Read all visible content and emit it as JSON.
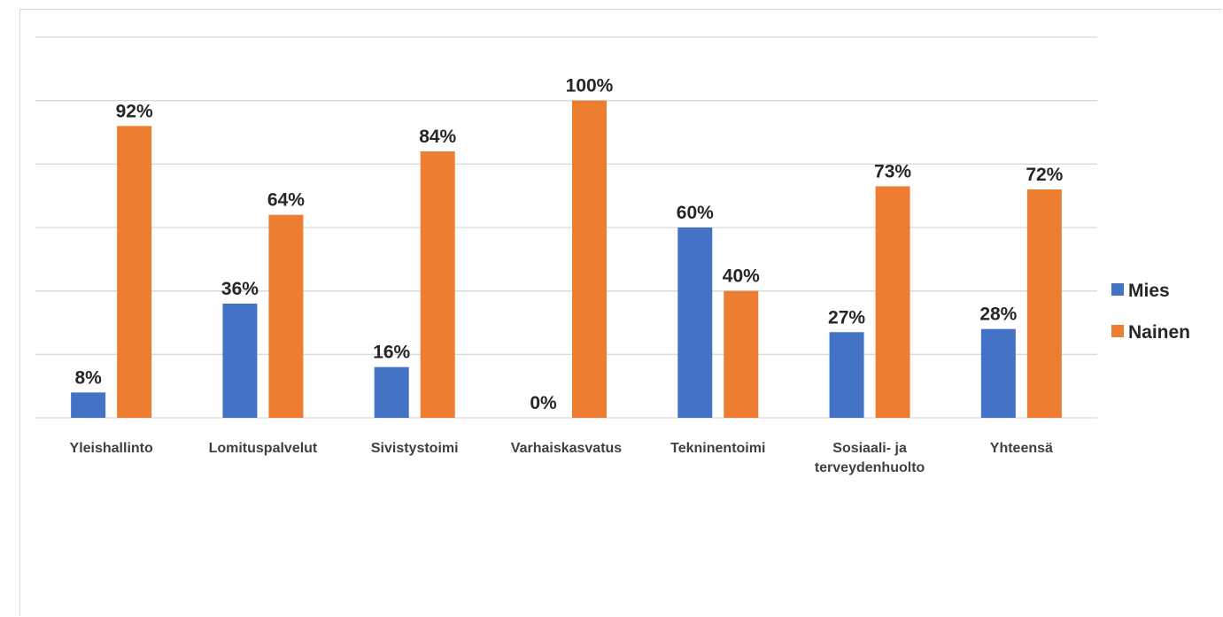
{
  "chart_data": {
    "type": "bar",
    "categories": [
      [
        "Yleishallinto"
      ],
      [
        "Lomituspalvelut"
      ],
      [
        "Sivistystoimi"
      ],
      [
        "Varhaiskasvatus"
      ],
      [
        "Tekninentoimi"
      ],
      [
        "Sosiaali- ja",
        "terveydenhuolto"
      ],
      [
        "Yhteensä"
      ]
    ],
    "series": [
      {
        "name": "Mies",
        "color": "#4472c4",
        "values": [
          8,
          36,
          16,
          0,
          60,
          27,
          28
        ],
        "labels": [
          "8%",
          "36%",
          "16%",
          "0%",
          "60%",
          "27%",
          "28%"
        ]
      },
      {
        "name": "Nainen",
        "color": "#ed7d31",
        "values": [
          92,
          64,
          84,
          100,
          40,
          73,
          72
        ],
        "labels": [
          "92%",
          "64%",
          "84%",
          "100%",
          "40%",
          "73%",
          "72%"
        ]
      }
    ],
    "ylim": [
      0,
      120
    ],
    "y_gridlines": [
      0,
      20,
      40,
      60,
      80,
      100,
      120
    ],
    "y_tick_labels_visible": false,
    "grid": true,
    "legend_position": "right",
    "title": "",
    "xlabel": "",
    "ylabel": ""
  }
}
